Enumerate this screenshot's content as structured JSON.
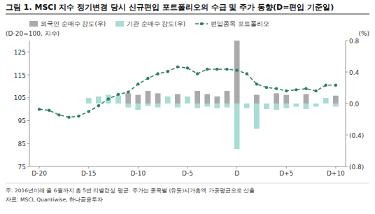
{
  "chart_data": {
    "type": "bar",
    "title": "그림 1. MSCI 지수 정기변경 당시 신규편입 포트폴리오의 수급 및 주가 동향(D=편입 기준일)",
    "ylabel": "(D-20=100, 지수)",
    "y2label": "(%)",
    "footnotes": [
      "주: 2016년이래 올 6월까지 총 5번 리밸런싱 평균. 주가는 종목별 (유동)시가총액 가중평균으로 산출",
      "자료: MSCI, Quantiwise, 하나금융투자"
    ],
    "categories": [
      "D-20",
      null,
      null,
      null,
      null,
      "D-15",
      null,
      null,
      null,
      null,
      "D-10",
      null,
      null,
      null,
      null,
      "D-5",
      null,
      null,
      null,
      null,
      "D",
      null,
      null,
      null,
      null,
      "D+5",
      null,
      null,
      null,
      null,
      "D+10"
    ],
    "series": [
      {
        "name": "외국인 순매수 강도(우)",
        "type": "bar",
        "axis": "y2",
        "color": "#aaaaaa",
        "values": [
          0.0,
          0.0,
          0.0,
          0.0,
          0.0,
          0.0,
          0.0,
          0.0,
          0.0,
          0.13,
          0.11,
          0.16,
          0.13,
          0.0,
          0.12,
          0.0,
          0.16,
          0.12,
          0.09,
          0.16,
          0.8,
          0.0,
          0.11,
          0.0,
          0.13,
          0.11,
          0.0,
          0.12,
          0.0,
          0.0,
          0.1
        ]
      },
      {
        "name": "기관 순매수 강도(우)",
        "type": "bar",
        "axis": "y2",
        "color": "#a8ddd4",
        "values": [
          0.0,
          0.0,
          0.0,
          0.0,
          0.0,
          0.07,
          0.09,
          0.11,
          0.1,
          -0.05,
          -0.08,
          -0.03,
          -0.05,
          0.09,
          -0.05,
          0.09,
          -0.06,
          -0.04,
          -0.06,
          -0.05,
          -0.58,
          -0.06,
          -0.32,
          -0.07,
          -0.08,
          -0.06,
          -0.04,
          -0.07,
          -0.04,
          0.07,
          -0.04
        ]
      },
      {
        "name": "편입종목 포트폴리오",
        "type": "line",
        "color": "#2d7d6e",
        "line_style": "dashed",
        "marker": "circle",
        "values": [
          100.0,
          99.5,
          97.5,
          96.5,
          97.0,
          99.0,
          101.5,
          104.5,
          106.5,
          107.5,
          111.0,
          113.5,
          115.5,
          116.5,
          118.5,
          118.0,
          115.5,
          117.5,
          117.5,
          117.5,
          117.0,
          115.5,
          111.0,
          109.5,
          109.0,
          108.0,
          108.5,
          109.0,
          108.0,
          110.5,
          110.5
        ]
      }
    ],
    "ylim": [
      75,
      130
    ],
    "yticks": [
      75,
      85,
      95,
      105,
      115,
      125
    ],
    "y2lim": [
      -0.8,
      0.8
    ],
    "y2ticks": [
      {
        "value": -0.8,
        "label": "(0.8)"
      },
      {
        "value": -0.4,
        "label": "(0.4)"
      },
      {
        "value": 0.0,
        "label": "0.0"
      },
      0.4,
      0.8
    ],
    "grid": false,
    "legend": "top"
  }
}
